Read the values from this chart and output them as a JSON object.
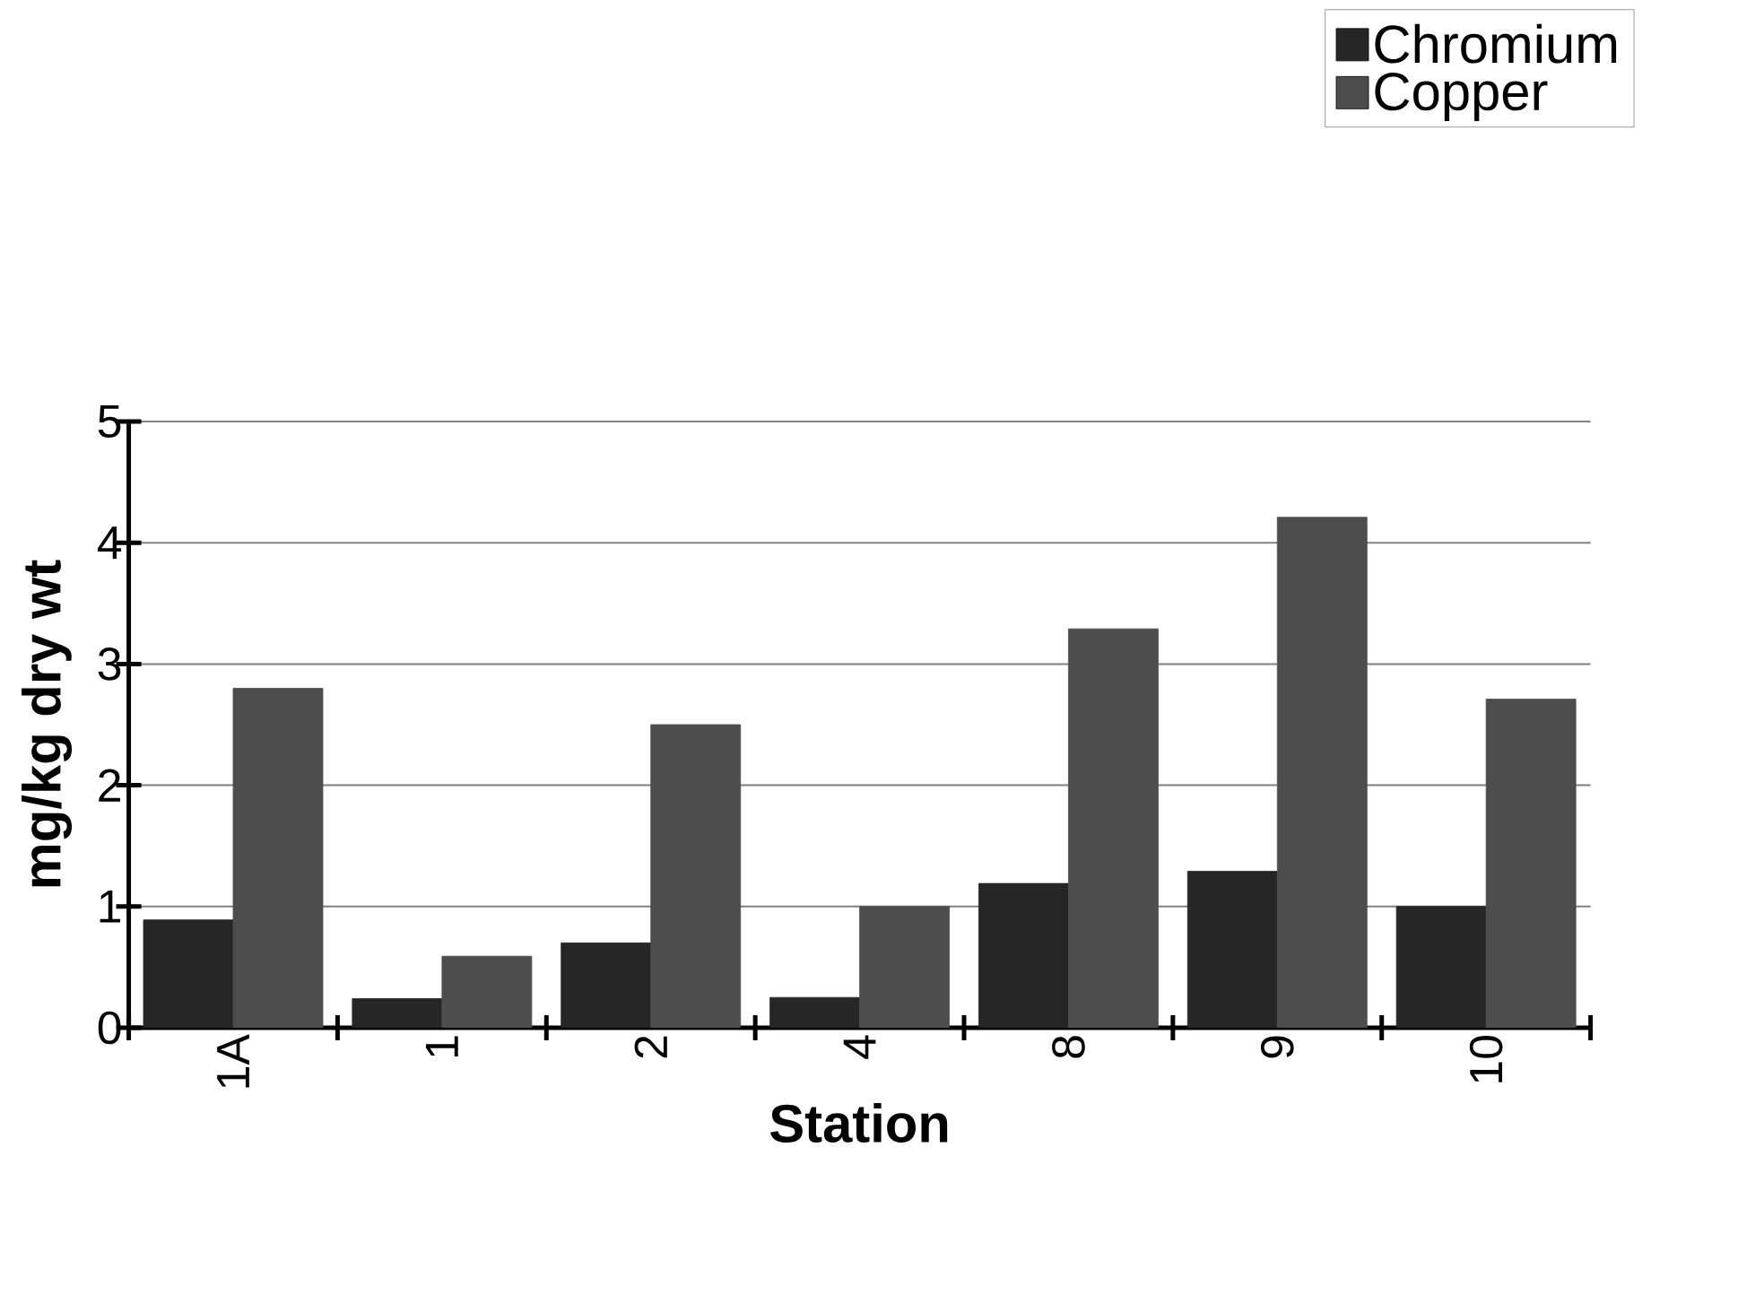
{
  "chart_data": {
    "type": "bar",
    "xlabel": "Station",
    "ylabel": "mg/kg dry wt",
    "categories": [
      "1A",
      "1",
      "2",
      "4",
      "8",
      "9",
      "10"
    ],
    "series": [
      {
        "name": "Chromium",
        "color": "#262626",
        "values": [
          0.89,
          0.24,
          0.7,
          0.25,
          1.19,
          1.29,
          1.0
        ]
      },
      {
        "name": "Copper",
        "color": "#4d4d4d",
        "values": [
          2.8,
          0.59,
          2.5,
          1.0,
          3.29,
          4.21,
          2.71
        ]
      }
    ],
    "ylim": [
      0,
      5
    ],
    "yticks": [
      0,
      1,
      2,
      3,
      4,
      5
    ],
    "grid": "y",
    "legend": "top right"
  }
}
